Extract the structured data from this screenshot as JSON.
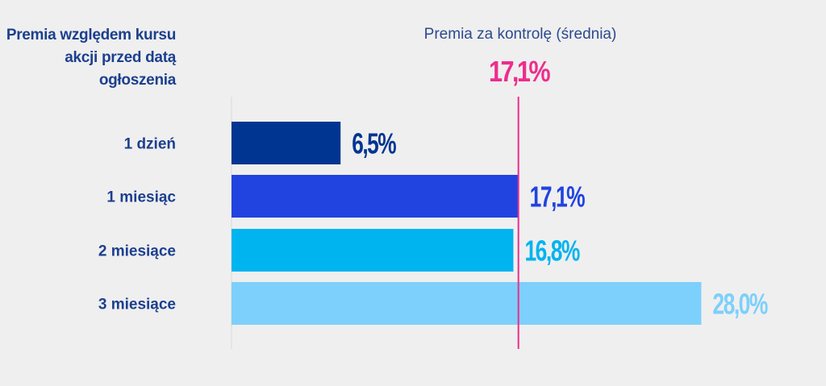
{
  "chart_data": {
    "type": "bar",
    "orientation": "horizontal",
    "title": "Premia względem kursu akcji przed datą ogłoszenia",
    "categories": [
      "1 dzień",
      "1 miesiąc",
      "2 miesiące",
      "3 miesiące"
    ],
    "values": [
      6.5,
      17.1,
      16.8,
      28.0
    ],
    "value_labels": [
      "6,5%",
      "17,1%",
      "16,8%",
      "28,0%"
    ],
    "colors": [
      "#003591",
      "#2143e0",
      "#00b4f0",
      "#7dd0fb"
    ],
    "reference_line": {
      "label": "Premia za kontrolę (średnia)",
      "value": 17.1,
      "value_label": "17,1%",
      "color": "#ee2d8c"
    },
    "xlim": [
      0,
      30
    ],
    "grid": false
  }
}
